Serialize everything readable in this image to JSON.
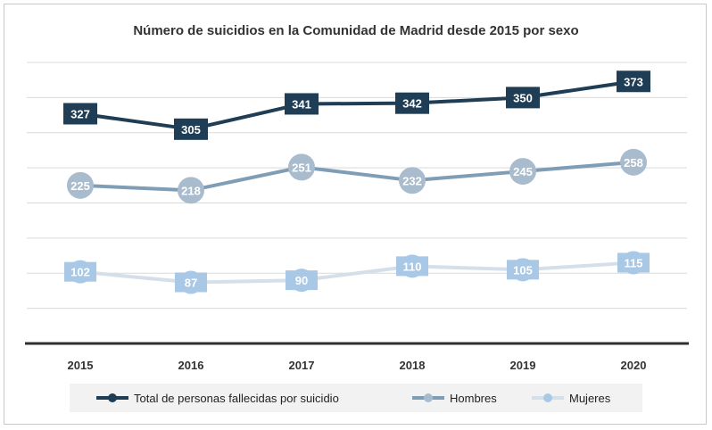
{
  "chart_data": {
    "type": "line",
    "title": "Número de suicidios en la Comunidad de Madrid desde 2015 por sexo",
    "xlabel": "",
    "ylabel": "",
    "categories": [
      "2015",
      "2016",
      "2017",
      "2018",
      "2019",
      "2020"
    ],
    "ylim": [
      0,
      400
    ],
    "grid": true,
    "legend_position": "bottom",
    "series": [
      {
        "name": "Total de personas fallecidas por suicidio",
        "values": [
          327,
          305,
          341,
          342,
          350,
          373
        ],
        "color": "#1f3d55",
        "label_color": "#ffffff"
      },
      {
        "name": "Hombres",
        "values": [
          225,
          218,
          251,
          232,
          245,
          258
        ],
        "color": "#7f9db5",
        "marker_color": "#a9bccd",
        "label_color": "#ffffff"
      },
      {
        "name": "Mujeres",
        "values": [
          102,
          87,
          90,
          110,
          105,
          115
        ],
        "color": "#d4dfea",
        "marker_color": "#a8c8e6",
        "label_color": "#ffffff"
      }
    ]
  }
}
